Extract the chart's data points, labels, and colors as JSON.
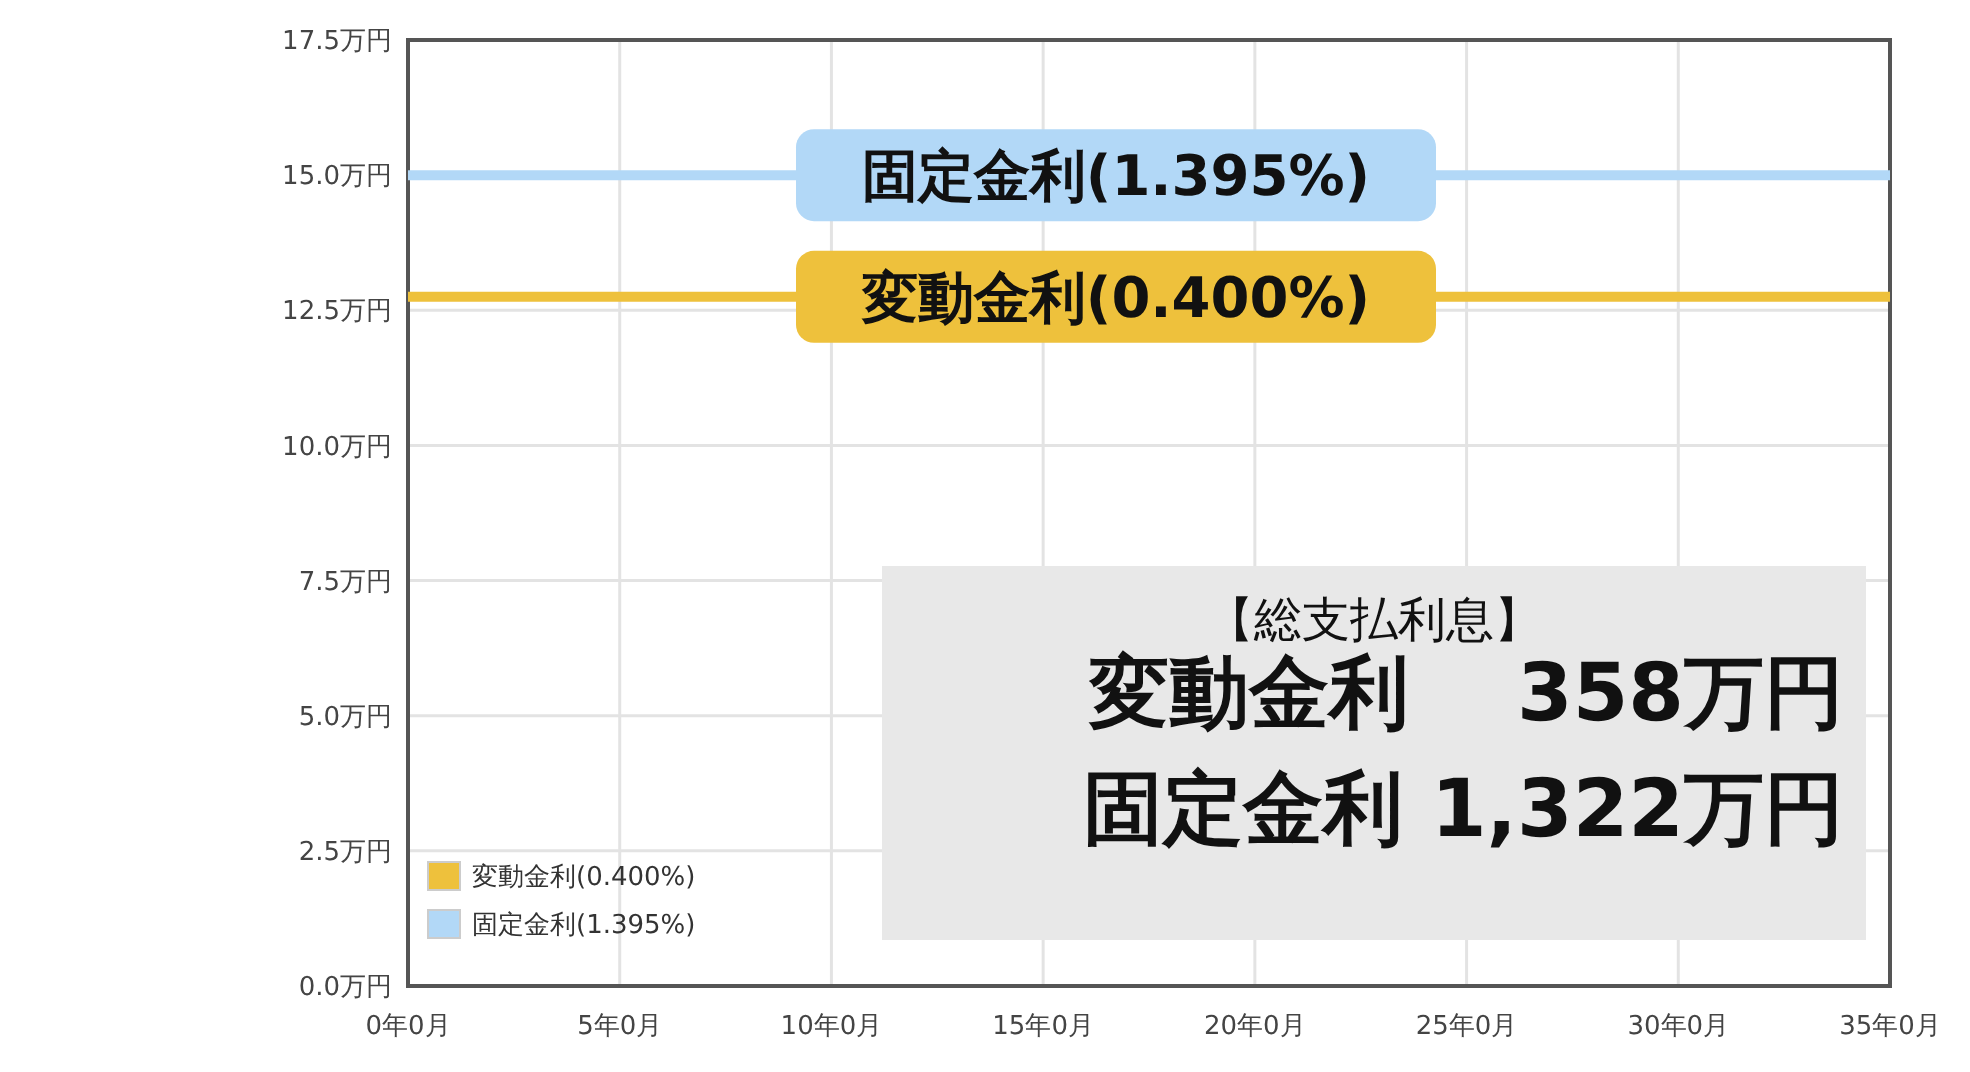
{
  "chart_data": {
    "type": "line",
    "categories": [
      "0年0月",
      "5年0月",
      "10年0月",
      "15年0月",
      "20年0月",
      "25年0月",
      "30年0月",
      "35年0月"
    ],
    "series": [
      {
        "name": "変動金利(0.400%)",
        "color": "#eec13c",
        "values": [
          12.75,
          12.75,
          null,
          null,
          null,
          12.75,
          12.75,
          12.75
        ]
      },
      {
        "name": "固定金利(1.395%)",
        "color": "#b2d8f7",
        "values": [
          15.0,
          15.0,
          null,
          null,
          null,
          15.0,
          15.0,
          15.0
        ]
      }
    ],
    "ylim": [
      0,
      17.5
    ],
    "yticks": [
      {
        "value": 0,
        "label": "0.0万円"
      },
      {
        "value": 2.5,
        "label": "2.5万円"
      },
      {
        "value": 5,
        "label": "5.0万円"
      },
      {
        "value": 7.5,
        "label": "7.5万円"
      },
      {
        "value": 10,
        "label": "10.0万円"
      },
      {
        "value": 12.5,
        "label": "12.5万円"
      },
      {
        "value": 15,
        "label": "15.0万円"
      },
      {
        "value": 17.5,
        "label": "17.5万円"
      }
    ],
    "grid": true,
    "legend": "bottom left",
    "marker": "none",
    "line_style": "solid",
    "annotations": [
      {
        "text": "固定金利(1.395%)",
        "y": 15.0
      },
      {
        "text": "変動金利(0.400%)",
        "y": 12.75
      },
      "【総支払利息】",
      "変動金利　 358万円",
      "固定金利 1,322万円"
    ]
  }
}
